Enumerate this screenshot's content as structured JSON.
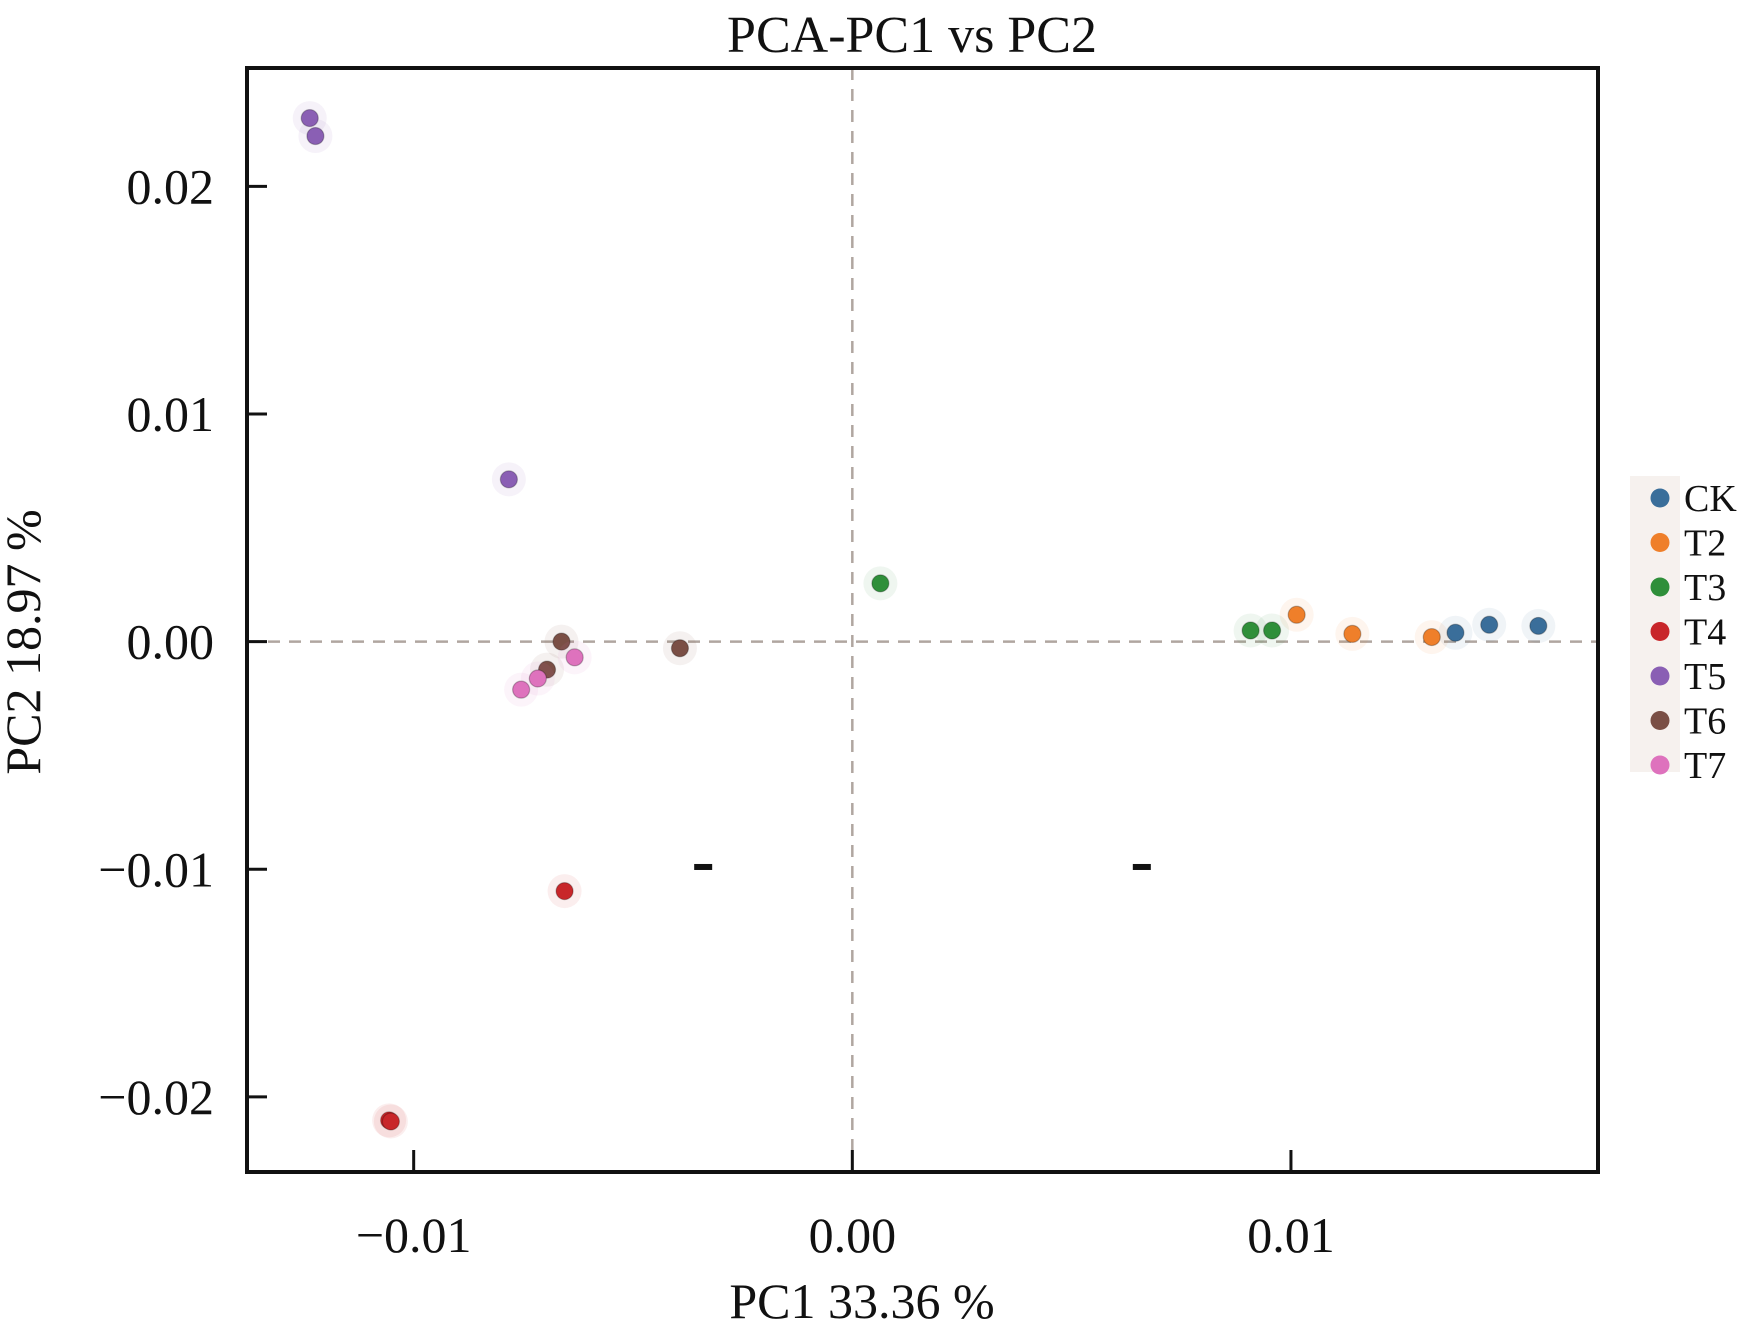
{
  "chart_data": {
    "type": "scatter",
    "title": "PCA-PC1 vs PC2",
    "xlabel": "PC1 33.36 %",
    "ylabel": "PC2 18.97 %",
    "xlim": [
      -0.0138,
      0.017
    ],
    "ylim": [
      -0.0233,
      0.0252
    ],
    "x_ticks": [
      -0.01,
      0.0,
      0.01
    ],
    "x_tick_labels": [
      "−0.01",
      "0.00",
      "0.01"
    ],
    "y_ticks": [
      0.02,
      0.01,
      0.0,
      -0.01,
      -0.02
    ],
    "y_tick_labels": [
      "0.02",
      "0.01",
      "0.00",
      "−0.01",
      "−0.02"
    ],
    "grid": false,
    "reference_lines": {
      "x": 0,
      "y": 0,
      "style": "dashed",
      "color": "#b0a6a0"
    },
    "legend_position": "right",
    "series": [
      {
        "name": "CK",
        "color": "#3a6e9a",
        "points": [
          [
            0.01375,
            0.00039
          ],
          [
            0.01452,
            0.00074
          ],
          [
            0.01564,
            0.00069
          ]
        ]
      },
      {
        "name": "T2",
        "color": "#ef7f2a",
        "points": [
          [
            0.01013,
            0.00118
          ],
          [
            0.0114,
            0.00034
          ],
          [
            0.01321,
            0.0002
          ]
        ]
      },
      {
        "name": "T3",
        "color": "#2f8f3a",
        "points": [
          [
            0.00064,
            0.00256
          ],
          [
            0.00908,
            0.00049
          ],
          [
            0.00957,
            0.00049
          ]
        ]
      },
      {
        "name": "T4",
        "color": "#c8262a",
        "points": [
          [
            -0.00656,
            -0.01096
          ],
          [
            -0.01056,
            -0.02103
          ],
          [
            -0.01052,
            -0.02108
          ]
        ]
      },
      {
        "name": "T5",
        "color": "#8a5fb4",
        "points": [
          [
            -0.01237,
            0.023
          ],
          [
            -0.01224,
            0.02221
          ],
          [
            -0.00783,
            0.00713
          ]
        ]
      },
      {
        "name": "T6",
        "color": "#7a4f45",
        "points": [
          [
            -0.00663,
            0.0
          ],
          [
            -0.00696,
            -0.00123
          ],
          [
            -0.00393,
            -0.00029
          ]
        ]
      },
      {
        "name": "T7",
        "color": "#de72bd",
        "points": [
          [
            -0.00755,
            -0.00211
          ],
          [
            -0.00717,
            -0.00162
          ],
          [
            -0.00633,
            -0.00069
          ]
        ]
      }
    ],
    "stray_marks": [
      [
        -0.0034,
        -0.0099
      ],
      [
        0.0066,
        -0.0099
      ]
    ]
  }
}
